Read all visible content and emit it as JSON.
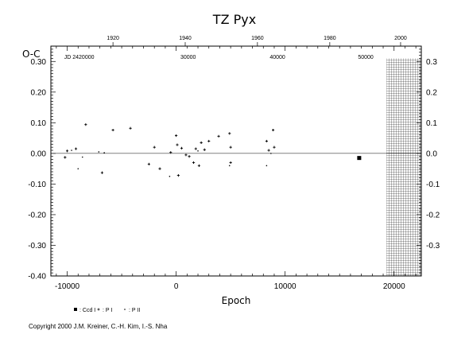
{
  "chart_data": {
    "type": "scatter",
    "title": "TZ Pyx",
    "xlabel": "Epoch",
    "ylabel": "O-C",
    "xlim": [
      -11500,
      22500
    ],
    "ylim": [
      -0.4,
      0.35
    ],
    "x_ticks": [
      "-10000",
      "0",
      "10000",
      "20000"
    ],
    "y_ticks_left": [
      "0.30",
      "0.20",
      "0.10",
      "0.00",
      "-0.10",
      "-0.20",
      "-0.30",
      "-0.40"
    ],
    "y_ticks_right": [
      "0.3",
      "0.2",
      "0.1",
      "0.0",
      "-0.1",
      "-0.2",
      "-0.3"
    ],
    "top_axis_years": {
      "ticks": [
        {
          "label": "1920",
          "epoch": -5800
        },
        {
          "label": "1940",
          "epoch": 830
        },
        {
          "label": "1960",
          "epoch": 7460
        },
        {
          "label": "1980",
          "epoch": 14100
        },
        {
          "label": "2000",
          "epoch": 20600
        }
      ]
    },
    "top_axis_jd": {
      "ticks": [
        {
          "label": "JD  2420000",
          "epoch": -8900
        },
        {
          "label": "30000",
          "epoch": 1100
        },
        {
          "label": "40000",
          "epoch": 9300
        },
        {
          "label": "50000",
          "epoch": 17400
        }
      ]
    },
    "hatched_region": [
      19300,
      22500
    ],
    "series": [
      {
        "name": ": Ccd I",
        "marker": "square",
        "points": [
          [
            16800,
            -0.015
          ]
        ]
      },
      {
        "name": ": P I",
        "marker": "plus",
        "points": [
          [
            -10200,
            -0.013
          ],
          [
            -10000,
            0.008
          ],
          [
            -9200,
            0.015
          ],
          [
            -8300,
            0.094
          ],
          [
            -6800,
            -0.063
          ],
          [
            -5800,
            0.076
          ],
          [
            -4200,
            0.082
          ],
          [
            -2500,
            -0.035
          ],
          [
            -2000,
            0.02
          ],
          [
            -1500,
            -0.05
          ],
          [
            -500,
            0.003
          ],
          [
            0,
            0.058
          ],
          [
            100,
            0.028
          ],
          [
            200,
            -0.072
          ],
          [
            500,
            0.017
          ],
          [
            900,
            -0.005
          ],
          [
            1200,
            -0.01
          ],
          [
            1600,
            -0.03
          ],
          [
            1800,
            0.015
          ],
          [
            2100,
            -0.04
          ],
          [
            2300,
            0.035
          ],
          [
            2600,
            0.012
          ],
          [
            3000,
            0.04
          ],
          [
            3900,
            0.056
          ],
          [
            4900,
            0.065
          ],
          [
            5000,
            0.02
          ],
          [
            5000,
            -0.03
          ],
          [
            8300,
            0.04
          ],
          [
            8500,
            0.01
          ],
          [
            8900,
            0.076
          ],
          [
            9000,
            0.02
          ]
        ]
      },
      {
        "name": ": P II",
        "marker": "dot",
        "points": [
          [
            -9600,
            0.01
          ],
          [
            -9000,
            -0.05
          ],
          [
            -8600,
            -0.012
          ],
          [
            -7100,
            0.005
          ],
          [
            -6600,
            0.002
          ],
          [
            -600,
            -0.075
          ],
          [
            2000,
            0.008
          ],
          [
            4900,
            -0.04
          ],
          [
            8300,
            -0.04
          ],
          [
            8700,
            0.0
          ]
        ]
      }
    ]
  },
  "copyright": "Copyright 2000 J.M. Kreiner, C.-H. Kim, I.-S. Nha"
}
